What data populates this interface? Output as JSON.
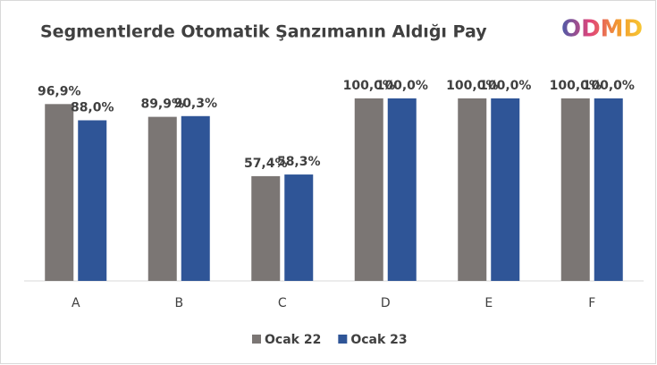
{
  "chart_data": {
    "type": "bar",
    "title": "Segmentlerde Otomatik Şanzımanın Aldığı Pay",
    "logo": "ODMD",
    "categories": [
      "A",
      "B",
      "C",
      "D",
      "E",
      "F"
    ],
    "series": [
      {
        "name": "Ocak 22",
        "color": "#7b7674",
        "values": [
          96.9,
          89.9,
          57.4,
          100.0,
          100.0,
          100.0
        ],
        "value_labels": [
          "96,9%",
          "89,9%",
          "57,4%",
          "100,0%",
          "100,0%",
          "100,0%"
        ]
      },
      {
        "name": "Ocak 23",
        "color": "#2f5597",
        "values": [
          88.0,
          90.3,
          58.3,
          100.0,
          100.0,
          100.0
        ],
        "value_labels": [
          "88,0%",
          "90,3%",
          "58,3%",
          "100,0%",
          "100,0%",
          "100,0%"
        ]
      }
    ]
  }
}
